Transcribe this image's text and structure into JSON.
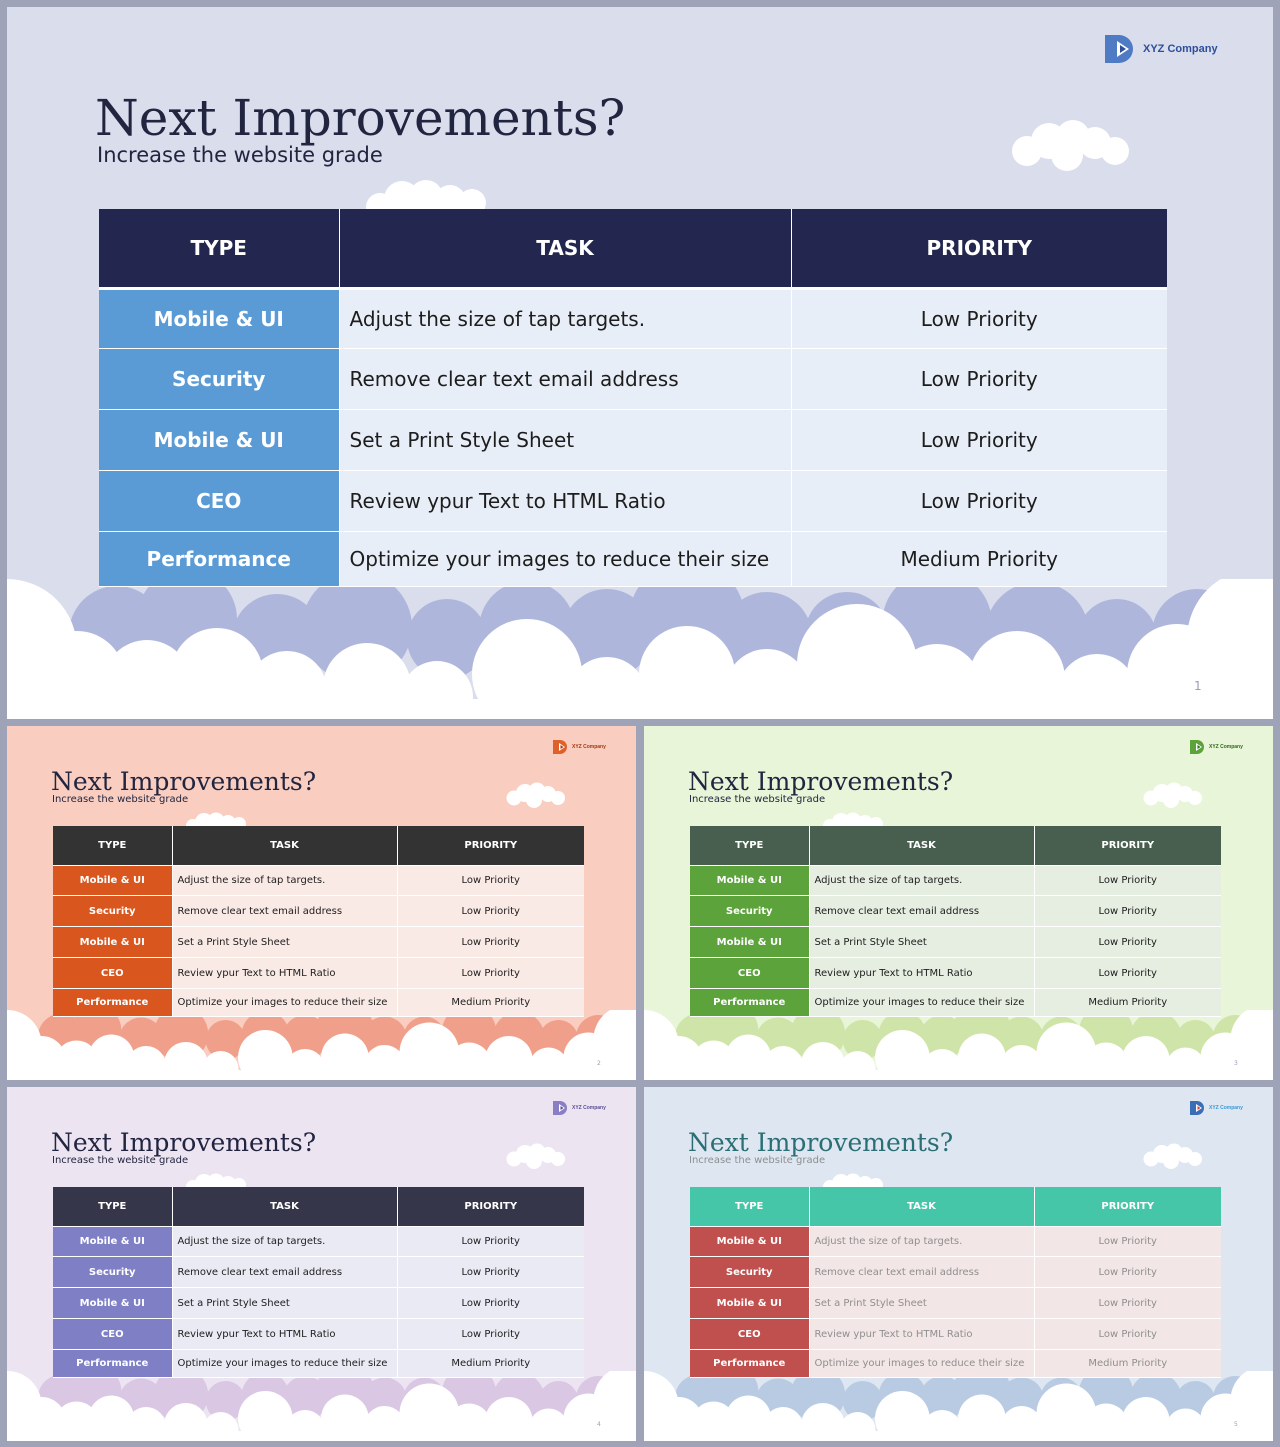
{
  "slides": [
    {
      "company": "XYZ Company",
      "title": "Next Improvements?",
      "subtitle": "Increase the website grade",
      "page_number": "1",
      "table": {
        "headers": [
          "TYPE",
          "TASK",
          "PRIORITY"
        ],
        "rows": [
          {
            "type": "Mobile & UI",
            "task": "Adjust the size of tap targets.",
            "priority": "Low Priority"
          },
          {
            "type": "Security",
            "task": "Remove clear text email address",
            "priority": "Low Priority"
          },
          {
            "type": "Mobile & UI",
            "task": "Set a Print Style Sheet",
            "priority": "Low Priority"
          },
          {
            "type": "CEO",
            "task": "Review ypur Text to HTML Ratio",
            "priority": "Low Priority"
          },
          {
            "type": "Performance",
            "task": "Optimize your images to reduce their size",
            "priority": "Medium Priority"
          }
        ]
      },
      "colors": {
        "background": "#d9ddec",
        "header": "#23274f",
        "type_cell": "#5b9bd5",
        "body_cell": "#e8eef7",
        "cloud_back": "#aeb6dc",
        "logo_main": "#4f7bc4",
        "logo_accent": "#2d4f9a",
        "text": "#22253f"
      }
    },
    {
      "company": "XYZ Company",
      "title": "Next Improvements?",
      "subtitle": "Increase the website grade",
      "page_number": "2",
      "table": {
        "headers": [
          "TYPE",
          "TASK",
          "PRIORITY"
        ],
        "rows": [
          {
            "type": "Mobile & UI",
            "task": "Adjust the size of tap targets.",
            "priority": "Low Priority"
          },
          {
            "type": "Security",
            "task": "Remove clear text email address",
            "priority": "Low Priority"
          },
          {
            "type": "Mobile & UI",
            "task": "Set a Print Style Sheet",
            "priority": "Low Priority"
          },
          {
            "type": "CEO",
            "task": "Review ypur Text to HTML Ratio",
            "priority": "Low Priority"
          },
          {
            "type": "Performance",
            "task": "Optimize your images to reduce their size",
            "priority": "Medium Priority"
          }
        ]
      },
      "colors": {
        "background": "#f9cdbf",
        "header": "#333333",
        "type_cell": "#d9561e",
        "body_cell": "#faeae6",
        "cloud_back": "#f0a08a",
        "logo_main": "#e0602a",
        "logo_accent": "#a23a12",
        "text": "#22253f"
      }
    },
    {
      "company": "XYZ Company",
      "title": "Next Improvements?",
      "subtitle": "Increase the website grade",
      "page_number": "3",
      "table": {
        "headers": [
          "TYPE",
          "TASK",
          "PRIORITY"
        ],
        "rows": [
          {
            "type": "Mobile & UI",
            "task": "Adjust the size of tap targets.",
            "priority": "Low Priority"
          },
          {
            "type": "Security",
            "task": "Remove clear text email address",
            "priority": "Low Priority"
          },
          {
            "type": "Mobile & UI",
            "task": "Set a Print Style Sheet",
            "priority": "Low Priority"
          },
          {
            "type": "CEO",
            "task": "Review ypur Text to HTML Ratio",
            "priority": "Low Priority"
          },
          {
            "type": "Performance",
            "task": "Optimize your images to reduce their size",
            "priority": "Medium Priority"
          }
        ]
      },
      "colors": {
        "background": "#e8f5d8",
        "header": "#485f4f",
        "type_cell": "#5ba33a",
        "body_cell": "#e6eee2",
        "cloud_back": "#cfe4a8",
        "logo_main": "#5ba33a",
        "logo_accent": "#2e6a1c",
        "text": "#22253f"
      }
    },
    {
      "company": "XYZ Company",
      "title": "Next Improvements?",
      "subtitle": "Increase the website grade",
      "page_number": "4",
      "table": {
        "headers": [
          "TYPE",
          "TASK",
          "PRIORITY"
        ],
        "rows": [
          {
            "type": "Mobile & UI",
            "task": "Adjust the size of tap targets.",
            "priority": "Low Priority"
          },
          {
            "type": "Security",
            "task": "Remove clear text email address",
            "priority": "Low Priority"
          },
          {
            "type": "Mobile & UI",
            "task": "Set a Print Style Sheet",
            "priority": "Low Priority"
          },
          {
            "type": "CEO",
            "task": "Review ypur Text to HTML Ratio",
            "priority": "Low Priority"
          },
          {
            "type": "Performance",
            "task": "Optimize your images to reduce their size",
            "priority": "Medium Priority"
          }
        ]
      },
      "colors": {
        "background": "#ede4f2",
        "header": "#35364a",
        "type_cell": "#7f7fc6",
        "body_cell": "#eaeaf4",
        "cloud_back": "#d9c7e3",
        "logo_main": "#8a7fc6",
        "logo_accent": "#5a4f96",
        "text": "#22253f"
      }
    },
    {
      "company": "XYZ Company",
      "title": "Next Improvements?",
      "subtitle": "Increase the website grade",
      "page_number": "5",
      "table": {
        "headers": [
          "TYPE",
          "TASK",
          "PRIORITY"
        ],
        "rows": [
          {
            "type": "Mobile & UI",
            "task": "Adjust the size of tap targets.",
            "priority": "Low Priority"
          },
          {
            "type": "Security",
            "task": "Remove clear text email address",
            "priority": "Low Priority"
          },
          {
            "type": "Mobile & UI",
            "task": "Set a Print Style Sheet",
            "priority": "Low Priority"
          },
          {
            "type": "CEO",
            "task": "Review ypur Text to HTML Ratio",
            "priority": "Low Priority"
          },
          {
            "type": "Performance",
            "task": "Optimize your images to reduce their size",
            "priority": "Medium Priority"
          }
        ]
      },
      "colors": {
        "background": "#dde6f1",
        "header": "#45c6a8",
        "type_cell": "#c0504d",
        "body_cell": "#f3e6e6",
        "cloud_back": "#b9cbe2",
        "logo_main": "#3a6fb7",
        "logo_accent": "#d0413b",
        "text": "#2a6f74",
        "muted_text": "#8f8f8f"
      }
    }
  ]
}
